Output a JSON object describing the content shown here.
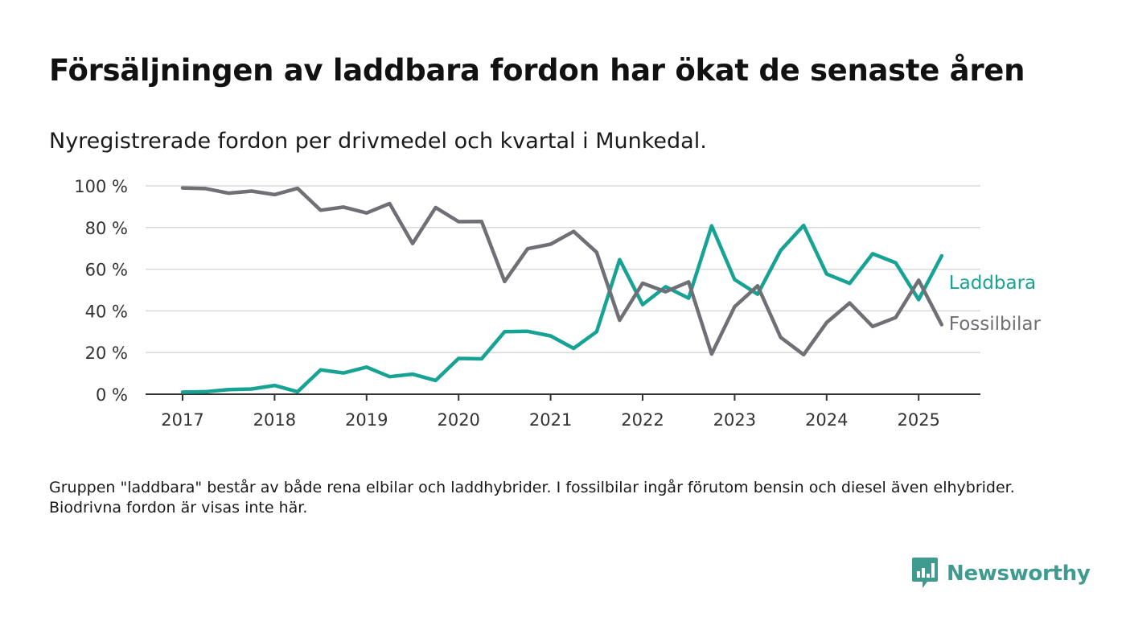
{
  "title": "Försäljningen av laddbara fordon har ökat de senaste åren",
  "subtitle": "Nyregistrerade fordon per drivmedel och kvartal i Munkedal.",
  "note": "Gruppen \"laddbara\" består av både rena elbilar och laddhybrider. I fossilbilar ingår förutom bensin och diesel även elhybrider. Biodrivna fordon är visas inte här.",
  "brand": {
    "name": "Newsworthy",
    "icon": "chat-bar-chart-icon",
    "color": "#3f9a8f"
  },
  "chart_data": {
    "type": "line",
    "x_ticks": [
      2017,
      2018,
      2019,
      2020,
      2021,
      2022,
      2023,
      2024,
      2025
    ],
    "y_ticks": [
      0,
      20,
      40,
      60,
      80,
      100
    ],
    "y_tick_labels": [
      "0 %",
      "20 %",
      "40 %",
      "60 %",
      "80 %",
      "100 %"
    ],
    "ylim": [
      0,
      100
    ],
    "xlim": [
      2016.5,
      2025.65
    ],
    "grid": "horizontal",
    "legend": "direct labels at line ends (right)",
    "x": [
      2017.0,
      2017.25,
      2017.5,
      2017.75,
      2018.0,
      2018.25,
      2018.5,
      2018.75,
      2019.0,
      2019.25,
      2019.5,
      2019.75,
      2020.0,
      2020.25,
      2020.5,
      2020.75,
      2021.0,
      2021.25,
      2021.5,
      2021.75,
      2022.0,
      2022.25,
      2022.5,
      2022.75,
      2023.0,
      2023.25,
      2023.5,
      2023.75,
      2024.0,
      2024.25,
      2024.5,
      2024.75,
      2025.0,
      2025.25
    ],
    "series": [
      {
        "name": "Laddbara",
        "color": "#16a394",
        "values": [
          1,
          1.2,
          2.2,
          2.5,
          4.2,
          1.2,
          11.7,
          10.2,
          13,
          8.4,
          9.6,
          6.6,
          17.2,
          17,
          30,
          30.2,
          28,
          22,
          30,
          64.6,
          43,
          51.6,
          46.1,
          80.8,
          55,
          48,
          69,
          81,
          57.7,
          53.2,
          67.4,
          63.1,
          45.4,
          66.4
        ]
      },
      {
        "name": "Fossilbilar",
        "color": "#6f6f76",
        "values": [
          99,
          98.7,
          96.5,
          97.5,
          95.8,
          98.8,
          88.3,
          89.8,
          87,
          91.5,
          72.3,
          89.6,
          82.8,
          82.9,
          54.1,
          69.8,
          72,
          78.1,
          68.1,
          35.5,
          53.3,
          49.2,
          53.9,
          19.3,
          42,
          52,
          27.3,
          19,
          34.4,
          43.8,
          32.5,
          36.8,
          54.7,
          33.4
        ]
      }
    ]
  }
}
